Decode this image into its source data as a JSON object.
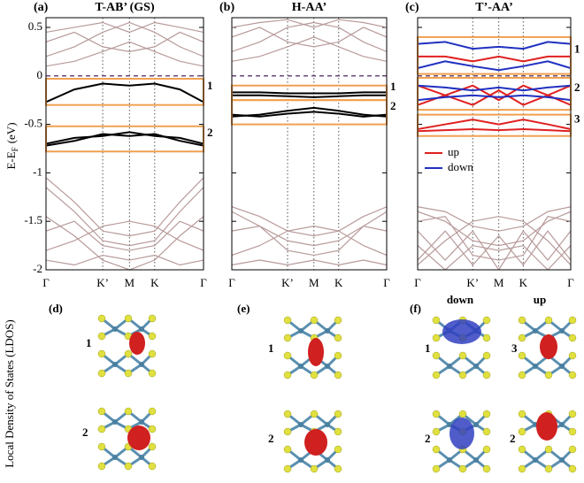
{
  "chart_data": [
    {
      "type": "line",
      "panel_label": "(a)",
      "title": "T-AB’ (GS)",
      "ylabel": [
        "E-E",
        "F",
        "(eV)"
      ],
      "show_ytick_labels": true,
      "x": [
        0,
        0.18,
        0.36,
        0.53,
        0.69,
        0.85,
        1
      ],
      "xlim": [
        0,
        1
      ],
      "xticks": [
        {
          "value": 0,
          "label": "Γ"
        },
        {
          "value": 0.36,
          "label": "K’"
        },
        {
          "value": 0.53,
          "label": "M"
        },
        {
          "value": 0.69,
          "label": "K"
        },
        {
          "value": 1,
          "label": "Γ"
        }
      ],
      "ylim": [
        -2,
        0.6
      ],
      "yticks": [
        0.5,
        0,
        -0.5,
        -1,
        -1.5,
        -2
      ],
      "fermi_level": 0,
      "dotted_vlines": true,
      "box_color": "#f0a050",
      "boxes": [
        {
          "label": "1",
          "range": [
            -0.3,
            -0.03
          ]
        },
        {
          "label": "2",
          "range": [
            -0.78,
            -0.52
          ]
        }
      ],
      "series": [
        {
          "color": "#b89a9a",
          "values": [
            0.2,
            0.3,
            0.45,
            0.55,
            0.45,
            0.3,
            0.2
          ]
        },
        {
          "color": "#b89a9a",
          "values": [
            0.35,
            0.45,
            0.3,
            0.25,
            0.3,
            0.45,
            0.35
          ]
        },
        {
          "color": "#b89a9a",
          "values": [
            0.1,
            0.15,
            0.25,
            0.35,
            0.25,
            0.15,
            0.1
          ]
        },
        {
          "color": "#b89a9a",
          "values": [
            0.45,
            0.5,
            0.55,
            0.45,
            0.55,
            0.5,
            0.45
          ]
        },
        {
          "color": "#b89a9a",
          "values": [
            -1.05,
            -1.3,
            -1.6,
            -1.65,
            -1.6,
            -1.3,
            -1.05
          ]
        },
        {
          "color": "#b89a9a",
          "values": [
            -1.15,
            -1.4,
            -1.7,
            -1.75,
            -1.7,
            -1.4,
            -1.15
          ]
        },
        {
          "color": "#b89a9a",
          "values": [
            -1.6,
            -1.5,
            -1.75,
            -1.8,
            -1.75,
            -1.5,
            -1.6
          ]
        },
        {
          "color": "#b89a9a",
          "values": [
            -1.8,
            -1.7,
            -1.55,
            -1.5,
            -1.55,
            -1.7,
            -1.8
          ]
        },
        {
          "color": "#b89a9a",
          "values": [
            -1.9,
            -1.95,
            -1.85,
            -1.9,
            -1.85,
            -1.95,
            -1.9
          ]
        },
        {
          "color": "#b89a9a",
          "values": [
            -1.45,
            -1.65,
            -1.9,
            -2,
            -1.9,
            -1.65,
            -1.45
          ]
        },
        {
          "color": "#000000",
          "highlight": true,
          "values": [
            -0.27,
            -0.14,
            -0.08,
            -0.1,
            -0.08,
            -0.14,
            -0.27
          ]
        },
        {
          "color": "#000000",
          "highlight": true,
          "values": [
            -0.72,
            -0.67,
            -0.6,
            -0.62,
            -0.6,
            -0.67,
            -0.72
          ]
        },
        {
          "color": "#000000",
          "highlight": true,
          "values": [
            -0.7,
            -0.64,
            -0.62,
            -0.58,
            -0.62,
            -0.64,
            -0.7
          ]
        }
      ]
    },
    {
      "type": "line",
      "panel_label": "(b)",
      "title": "H-AA’",
      "show_ytick_labels": false,
      "x": [
        0,
        0.18,
        0.36,
        0.53,
        0.69,
        0.85,
        1
      ],
      "xlim": [
        0,
        1
      ],
      "xticks": [
        {
          "value": 0,
          "label": "Γ"
        },
        {
          "value": 0.36,
          "label": "K’"
        },
        {
          "value": 0.53,
          "label": "M"
        },
        {
          "value": 0.69,
          "label": "K"
        },
        {
          "value": 1,
          "label": "Γ"
        }
      ],
      "ylim": [
        -2,
        0.6
      ],
      "yticks": [
        0.5,
        0,
        -0.5,
        -1,
        -1.5,
        -2
      ],
      "fermi_level": 0,
      "dotted_vlines": true,
      "box_color": "#f0a050",
      "boxes": [
        {
          "label": "1",
          "range": [
            -0.25,
            -0.1
          ]
        },
        {
          "label": "2",
          "range": [
            -0.5,
            -0.25
          ]
        }
      ],
      "series": [
        {
          "color": "#b89a9a",
          "values": [
            0.25,
            0.35,
            0.5,
            0.55,
            0.5,
            0.35,
            0.25
          ]
        },
        {
          "color": "#b89a9a",
          "values": [
            0.4,
            0.5,
            0.35,
            0.3,
            0.35,
            0.5,
            0.4
          ]
        },
        {
          "color": "#b89a9a",
          "values": [
            0.15,
            0.2,
            0.3,
            0.4,
            0.3,
            0.2,
            0.15
          ]
        },
        {
          "color": "#b89a9a",
          "values": [
            0.5,
            0.55,
            0.58,
            0.5,
            0.58,
            0.55,
            0.5
          ]
        },
        {
          "color": "#b89a9a",
          "values": [
            -1.35,
            -1.45,
            -1.6,
            -1.65,
            -1.6,
            -1.45,
            -1.35
          ]
        },
        {
          "color": "#b89a9a",
          "values": [
            -1.4,
            -1.55,
            -1.7,
            -1.75,
            -1.7,
            -1.55,
            -1.4
          ]
        },
        {
          "color": "#b89a9a",
          "values": [
            -1.6,
            -1.55,
            -1.8,
            -1.85,
            -1.8,
            -1.55,
            -1.6
          ]
        },
        {
          "color": "#b89a9a",
          "values": [
            -1.85,
            -1.75,
            -1.6,
            -1.55,
            -1.6,
            -1.75,
            -1.85
          ]
        },
        {
          "color": "#b89a9a",
          "values": [
            -1.95,
            -1.9,
            -1.95,
            -1.9,
            -1.95,
            -1.9,
            -1.95
          ]
        },
        {
          "color": "#000000",
          "highlight": true,
          "values": [
            -0.17,
            -0.17,
            -0.18,
            -0.18,
            -0.18,
            -0.17,
            -0.17
          ]
        },
        {
          "color": "#000000",
          "highlight": true,
          "values": [
            -0.2,
            -0.2,
            -0.21,
            -0.22,
            -0.21,
            -0.2,
            -0.2
          ]
        },
        {
          "color": "#000000",
          "highlight": true,
          "values": [
            -0.42,
            -0.4,
            -0.36,
            -0.33,
            -0.36,
            -0.4,
            -0.42
          ]
        },
        {
          "color": "#000000",
          "highlight": true,
          "values": [
            -0.4,
            -0.42,
            -0.39,
            -0.37,
            -0.39,
            -0.42,
            -0.4
          ]
        }
      ]
    },
    {
      "type": "line",
      "panel_label": "(c)",
      "title": "T’-AA’",
      "show_ytick_labels": false,
      "x": [
        0,
        0.18,
        0.36,
        0.53,
        0.69,
        0.85,
        1
      ],
      "xlim": [
        0,
        1
      ],
      "xticks": [
        {
          "value": 0,
          "label": "Γ"
        },
        {
          "value": 0.36,
          "label": "K’"
        },
        {
          "value": 0.53,
          "label": "M"
        },
        {
          "value": 0.69,
          "label": "K"
        },
        {
          "value": 1,
          "label": "Γ"
        }
      ],
      "ylim": [
        -2,
        0.6
      ],
      "yticks": [
        0.5,
        0,
        -0.5,
        -1,
        -1.5,
        -2
      ],
      "fermi_level": 0,
      "dotted_vlines": true,
      "box_color": "#f0a050",
      "boxes": [
        {
          "label": "1",
          "range": [
            0.02,
            0.4
          ]
        },
        {
          "label": "2",
          "range": [
            -0.35,
            -0.02
          ]
        },
        {
          "label": "3",
          "range": [
            -0.62,
            -0.4
          ]
        }
      ],
      "legend": [
        {
          "name": "up",
          "color": "#e02020"
        },
        {
          "name": "down",
          "color": "#2030c0"
        }
      ],
      "series": [
        {
          "color": "#b89a9a",
          "values": [
            -1.35,
            -1.4,
            -1.55,
            -1.6,
            -1.55,
            -1.4,
            -1.35
          ]
        },
        {
          "color": "#b89a9a",
          "values": [
            -1.4,
            -1.5,
            -1.7,
            -1.75,
            -1.7,
            -1.5,
            -1.4
          ]
        },
        {
          "color": "#b89a9a",
          "values": [
            -1.5,
            -1.45,
            -1.85,
            -1.9,
            -1.85,
            -1.45,
            -1.5
          ]
        },
        {
          "color": "#b89a9a",
          "values": [
            -1.95,
            -1.7,
            -1.5,
            -1.45,
            -1.5,
            -1.7,
            -1.95
          ]
        },
        {
          "color": "#b89a9a",
          "values": [
            -1.6,
            -1.9,
            -1.6,
            -2,
            -1.6,
            -1.9,
            -1.6
          ]
        },
        {
          "color": "#b89a9a",
          "values": [
            -1.9,
            -1.6,
            -1.95,
            -1.65,
            -1.95,
            -1.6,
            -1.9
          ]
        },
        {
          "color": "#b89a9a",
          "values": [
            -1.75,
            -2,
            -1.75,
            -1.8,
            -1.75,
            -2,
            -1.75
          ]
        },
        {
          "color": "#2030c0",
          "highlight": true,
          "values": [
            0.33,
            0.35,
            0.28,
            0.3,
            0.28,
            0.35,
            0.33
          ]
        },
        {
          "color": "#e02020",
          "highlight": true,
          "values": [
            0.2,
            0.2,
            0.15,
            0.2,
            0.15,
            0.2,
            0.2
          ]
        },
        {
          "color": "#2030c0",
          "highlight": true,
          "values": [
            0.08,
            0.15,
            0.1,
            0.06,
            0.1,
            0.15,
            0.08
          ]
        },
        {
          "color": "#e02020",
          "highlight": true,
          "values": [
            -0.3,
            -0.2,
            -0.1,
            -0.25,
            -0.1,
            -0.2,
            -0.3
          ]
        },
        {
          "color": "#e02020",
          "highlight": true,
          "values": [
            -0.1,
            -0.2,
            -0.3,
            -0.15,
            -0.3,
            -0.2,
            -0.1
          ]
        },
        {
          "color": "#2030c0",
          "highlight": true,
          "values": [
            -0.25,
            -0.22,
            -0.2,
            -0.22,
            -0.2,
            -0.22,
            -0.25
          ]
        },
        {
          "color": "#2030c0",
          "highlight": true,
          "values": [
            -0.1,
            -0.12,
            -0.15,
            -0.12,
            -0.15,
            -0.12,
            -0.1
          ]
        },
        {
          "color": "#e02020",
          "highlight": true,
          "values": [
            -0.55,
            -0.5,
            -0.45,
            -0.5,
            -0.45,
            -0.5,
            -0.55
          ]
        },
        {
          "color": "#e02020",
          "highlight": true,
          "values": [
            -0.57,
            -0.56,
            -0.55,
            -0.56,
            -0.55,
            -0.56,
            -0.57
          ]
        }
      ]
    }
  ],
  "ldos": {
    "axis_label": "Local Density of States (LDOS)",
    "panels": [
      {
        "label": "(d)",
        "states": [
          "1",
          "2"
        ]
      },
      {
        "label": "(e)",
        "states": [
          "1",
          "2"
        ]
      },
      {
        "label": "(f)",
        "columns": [
          "down",
          "up"
        ],
        "states": [
          "1",
          "3",
          "2",
          "2"
        ]
      }
    ]
  }
}
